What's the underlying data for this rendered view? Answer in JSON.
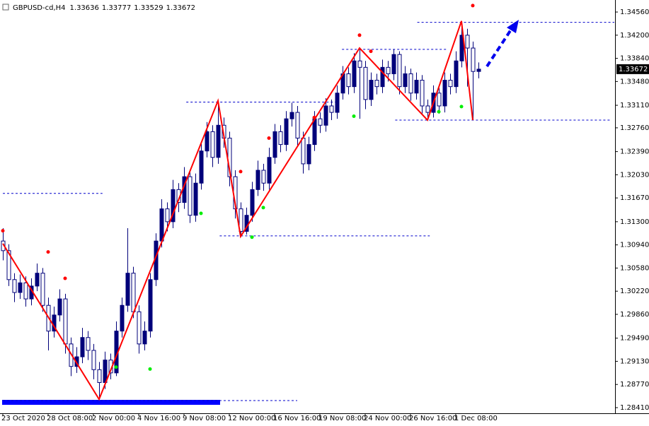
{
  "chart_data": {
    "type": "candlestick",
    "title": "GBPUSD-cd,H4",
    "candle_color": "#00007a",
    "categories": [
      "23 Oct 2020",
      null,
      null,
      null,
      null,
      null,
      null,
      null,
      "28 Oct 08:00",
      null,
      null,
      null,
      null,
      null,
      null,
      null,
      "2 Nov 00:00",
      null,
      null,
      null,
      null,
      null,
      null,
      null,
      "4 Nov 16:00",
      null,
      null,
      null,
      null,
      null,
      null,
      null,
      "9 Nov 08:00",
      null,
      null,
      null,
      null,
      null,
      null,
      null,
      "12 Nov 00:00",
      null,
      null,
      null,
      null,
      null,
      null,
      null,
      "16 Nov 16:00",
      null,
      null,
      null,
      null,
      null,
      null,
      null,
      "19 Nov 08:00",
      null,
      null,
      null,
      null,
      null,
      null,
      null,
      "24 Nov 00:00",
      null,
      null,
      null,
      null,
      null,
      null,
      null,
      "26 Nov 16:00",
      null,
      null,
      null,
      null,
      null,
      null,
      null,
      "1 Dec 08:00",
      null,
      null,
      null,
      null
    ],
    "open": [
      1.31,
      1.3085,
      1.304,
      1.302,
      1.3035,
      1.301,
      1.303,
      1.305,
      1.3,
      1.296,
      1.2985,
      1.301,
      1.294,
      1.2905,
      1.292,
      1.295,
      1.293,
      1.29,
      1.288,
      1.2915,
      1.2895,
      1.296,
      1.3,
      1.305,
      1.299,
      1.294,
      1.296,
      1.304,
      1.31,
      1.315,
      1.313,
      1.318,
      1.316,
      1.32,
      1.314,
      1.319,
      1.324,
      1.327,
      1.323,
      1.328,
      1.326,
      1.32,
      1.315,
      1.3115,
      1.314,
      1.318,
      1.321,
      1.319,
      1.323,
      1.327,
      1.325,
      1.329,
      1.33,
      1.326,
      1.322,
      1.325,
      1.329,
      1.328,
      1.331,
      1.33,
      1.333,
      1.336,
      1.334,
      1.338,
      1.337,
      1.332,
      1.335,
      1.334,
      1.337,
      1.336,
      1.339,
      1.334,
      1.336,
      1.333,
      1.335,
      1.331,
      1.33,
      1.333,
      1.331,
      1.335,
      1.334,
      1.338,
      1.342,
      1.34,
      1.33636
    ],
    "high": [
      1.312,
      1.3095,
      1.305,
      1.3048,
      1.3045,
      1.3042,
      1.3065,
      1.3058,
      1.3012,
      1.2998,
      1.3025,
      1.3018,
      1.295,
      1.2935,
      1.2965,
      1.296,
      1.294,
      1.2912,
      1.2928,
      1.2925,
      1.2975,
      1.3012,
      1.312,
      1.306,
      1.3,
      1.2975,
      1.305,
      1.3112,
      1.3165,
      1.316,
      1.3195,
      1.319,
      1.3215,
      1.321,
      1.3205,
      1.3255,
      1.3285,
      1.328,
      1.3318,
      1.3292,
      1.327,
      1.321,
      1.316,
      1.3152,
      1.3192,
      1.3225,
      1.322,
      1.3245,
      1.3282,
      1.328,
      1.3302,
      1.3315,
      1.331,
      1.327,
      1.3262,
      1.3302,
      1.33,
      1.3322,
      1.332,
      1.3342,
      1.3372,
      1.337,
      1.3392,
      1.34,
      1.338,
      1.3362,
      1.336,
      1.3382,
      1.338,
      1.3398,
      1.3395,
      1.3372,
      1.3368,
      1.3362,
      1.3358,
      1.332,
      1.3342,
      1.3338,
      1.3362,
      1.336,
      1.3395,
      1.3442,
      1.343,
      1.341,
      1.33777
    ],
    "low": [
      1.307,
      1.303,
      1.3005,
      1.301,
      1.2998,
      1.3,
      1.3022,
      1.299,
      1.293,
      1.295,
      1.2975,
      1.2925,
      1.289,
      1.2895,
      1.291,
      1.2915,
      1.2885,
      1.2854,
      1.287,
      1.2885,
      1.289,
      1.295,
      1.299,
      1.298,
      1.2925,
      1.293,
      1.295,
      1.303,
      1.309,
      1.3115,
      1.312,
      1.3145,
      1.315,
      1.3128,
      1.313,
      1.318,
      1.323,
      1.3215,
      1.322,
      1.3245,
      1.3185,
      1.3135,
      1.3107,
      1.311,
      1.313,
      1.317,
      1.3178,
      1.318,
      1.322,
      1.3238,
      1.324,
      1.3278,
      1.3248,
      1.3205,
      1.321,
      1.324,
      1.3268,
      1.327,
      1.3288,
      1.329,
      1.332,
      1.3328,
      1.333,
      1.329,
      1.3305,
      1.331,
      1.3328,
      1.333,
      1.3348,
      1.335,
      1.3328,
      1.333,
      1.3318,
      1.332,
      1.3298,
      1.3288,
      1.3292,
      1.3298,
      1.33,
      1.3328,
      1.333,
      1.337,
      1.334,
      1.3288,
      1.33529
    ],
    "close": [
      1.3085,
      1.304,
      1.302,
      1.3035,
      1.301,
      1.303,
      1.305,
      1.3,
      1.296,
      1.2985,
      1.301,
      1.294,
      1.2905,
      1.292,
      1.295,
      1.293,
      1.29,
      1.288,
      1.2915,
      1.2895,
      1.296,
      1.3,
      1.305,
      1.299,
      1.294,
      1.296,
      1.304,
      1.31,
      1.315,
      1.313,
      1.318,
      1.316,
      1.32,
      1.314,
      1.319,
      1.324,
      1.327,
      1.323,
      1.328,
      1.326,
      1.32,
      1.315,
      1.3115,
      1.314,
      1.318,
      1.321,
      1.319,
      1.323,
      1.327,
      1.325,
      1.329,
      1.33,
      1.326,
      1.322,
      1.325,
      1.329,
      1.328,
      1.331,
      1.33,
      1.333,
      1.336,
      1.334,
      1.338,
      1.337,
      1.332,
      1.335,
      1.334,
      1.337,
      1.336,
      1.339,
      1.334,
      1.336,
      1.333,
      1.335,
      1.331,
      1.33,
      1.333,
      1.331,
      1.335,
      1.334,
      1.338,
      1.342,
      1.34,
      1.33636,
      1.33672
    ],
    "ylim": [
      1.28322,
      1.34747
    ],
    "yticks": [
      {
        "value": 1.3456,
        "label": "1.34560"
      },
      {
        "value": 1.342,
        "label": "1.34200"
      },
      {
        "value": 1.3384,
        "label": "1.33840"
      },
      {
        "value": 1.3348,
        "label": "1.33480"
      },
      {
        "value": 1.3311,
        "label": "1.33110"
      },
      {
        "value": 1.3276,
        "label": "1.32760"
      },
      {
        "value": 1.3239,
        "label": "1.32390"
      },
      {
        "value": 1.3203,
        "label": "1.32030"
      },
      {
        "value": 1.3167,
        "label": "1.31670"
      },
      {
        "value": 1.313,
        "label": "1.31300"
      },
      {
        "value": 1.3094,
        "label": "1.30940"
      },
      {
        "value": 1.3058,
        "label": "1.30580"
      },
      {
        "value": 1.3022,
        "label": "1.30220"
      },
      {
        "value": 1.2986,
        "label": "1.29860"
      },
      {
        "value": 1.2949,
        "label": "1.29490"
      },
      {
        "value": 1.2913,
        "label": "1.29130"
      },
      {
        "value": 1.2877,
        "label": "1.28770"
      },
      {
        "value": 1.2841,
        "label": "1.28410"
      }
    ],
    "zigzag": {
      "color": "#ff0000",
      "x": [
        0,
        17,
        38,
        42,
        63,
        75,
        81,
        83
      ],
      "values": [
        1.3096,
        1.2854,
        1.3318,
        1.3107,
        1.34,
        1.3288,
        1.3442,
        1.3288
      ]
    },
    "levels": {
      "color": "#0000cc",
      "from": [
        0,
        32.4,
        38.3,
        59.9,
        73.2,
        69.3,
        0
      ],
      "to": [
        17.6,
        58.9,
        75.4,
        78.6,
        108,
        107.3,
        52
      ],
      "values": [
        1.3174,
        1.3316,
        1.3108,
        1.3398,
        1.344,
        1.3288,
        1.2852
      ]
    },
    "fractals_up": {
      "color": "#ff0000",
      "x": [
        0,
        8,
        11,
        42,
        47,
        55,
        63,
        65,
        83
      ],
      "values": [
        1.3116,
        1.3083,
        1.3042,
        1.3208,
        1.326,
        1.3292,
        1.342,
        1.3395,
        1.3466
      ]
    },
    "fractals_down": {
      "color": "#00ee00",
      "x": [
        20,
        26,
        35,
        44,
        46,
        62,
        77,
        81
      ],
      "values": [
        1.2904,
        1.2901,
        1.3143,
        1.3106,
        1.3152,
        1.3294,
        1.3301,
        1.3309
      ]
    }
  }
}
